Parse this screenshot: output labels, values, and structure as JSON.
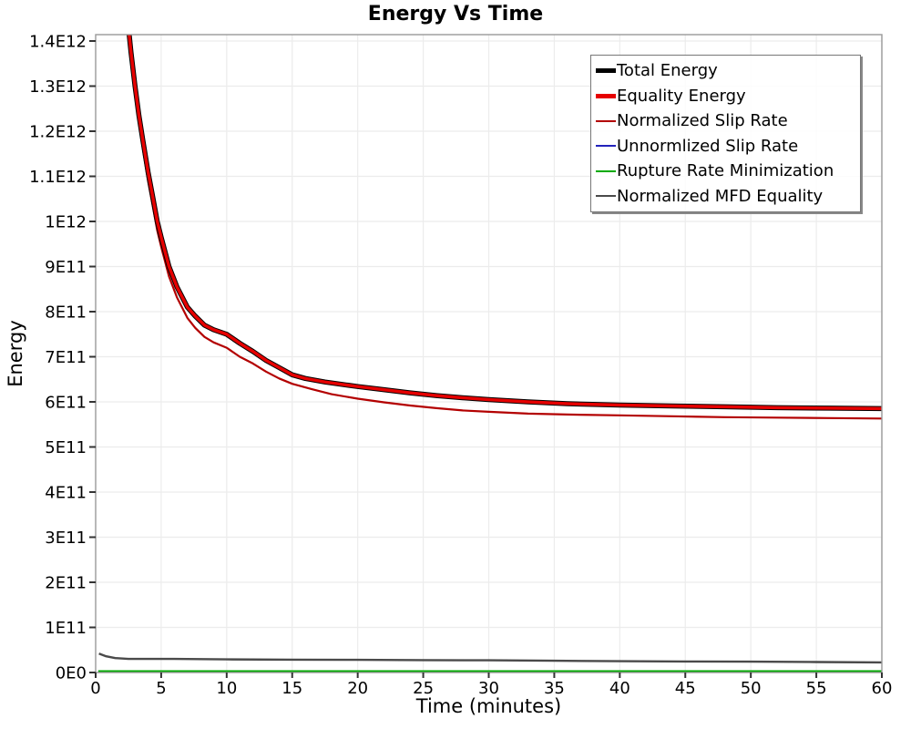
{
  "chart_data": {
    "type": "line",
    "title": "Energy Vs Time",
    "xlabel": "Time (minutes)",
    "ylabel": "Energy",
    "xlim": [
      0,
      60
    ],
    "ylim_e11": [
      0,
      14.14
    ],
    "grid": true,
    "legend_position": "top-right",
    "x_ticks": {
      "values": [
        0,
        5,
        10,
        15,
        20,
        25,
        30,
        35,
        40,
        45,
        50,
        55,
        60
      ],
      "labels": [
        "0",
        "5",
        "10",
        "15",
        "20",
        "25",
        "30",
        "35",
        "40",
        "45",
        "50",
        "55",
        "60"
      ]
    },
    "y_ticks": {
      "values_e11": [
        0,
        1,
        2,
        3,
        4,
        5,
        6,
        7,
        8,
        9,
        10,
        11,
        12,
        13,
        14
      ],
      "labels": [
        "0E0",
        "1E11",
        "2E11",
        "3E11",
        "4E11",
        "5E11",
        "6E11",
        "7E11",
        "8E11",
        "9E11",
        "1E12",
        "1.1E12",
        "1.2E12",
        "1.3E12",
        "1.4E12"
      ]
    },
    "units": "points are [time_minutes, energy_in_1e11]",
    "series": [
      {
        "name": "Total Energy",
        "color": "#000000",
        "width": 5.5,
        "legend_lw": 5,
        "zorder": 5,
        "points": [
          [
            2.3,
            15.2
          ],
          [
            2.5,
            14.3
          ],
          [
            2.7,
            13.75
          ],
          [
            3.0,
            13.0
          ],
          [
            3.3,
            12.35
          ],
          [
            3.6,
            11.8
          ],
          [
            4.0,
            11.1
          ],
          [
            4.35,
            10.55
          ],
          [
            4.7,
            10.0
          ],
          [
            5.0,
            9.65
          ],
          [
            5.6,
            9.0
          ],
          [
            6.2,
            8.55
          ],
          [
            7.0,
            8.1
          ],
          [
            7.6,
            7.9
          ],
          [
            8.3,
            7.7
          ],
          [
            9.0,
            7.6
          ],
          [
            10,
            7.5
          ],
          [
            11,
            7.3
          ],
          [
            12,
            7.12
          ],
          [
            13,
            6.92
          ],
          [
            14,
            6.76
          ],
          [
            15,
            6.6
          ],
          [
            16,
            6.52
          ],
          [
            17.5,
            6.44
          ],
          [
            20,
            6.34
          ],
          [
            22,
            6.27
          ],
          [
            24,
            6.2
          ],
          [
            26,
            6.14
          ],
          [
            28,
            6.09
          ],
          [
            30,
            6.05
          ],
          [
            33,
            6.0
          ],
          [
            36,
            5.96
          ],
          [
            40,
            5.93
          ],
          [
            44,
            5.91
          ],
          [
            48,
            5.89
          ],
          [
            52,
            5.87
          ],
          [
            56,
            5.86
          ],
          [
            60,
            5.85
          ]
        ]
      },
      {
        "name": "Equality Energy",
        "color": "#e60000",
        "width": 3.5,
        "legend_lw": 5,
        "zorder": 6,
        "points": [
          [
            2.3,
            15.2
          ],
          [
            2.5,
            14.3
          ],
          [
            2.7,
            13.75
          ],
          [
            3.0,
            13.0
          ],
          [
            3.3,
            12.35
          ],
          [
            3.6,
            11.8
          ],
          [
            4.0,
            11.1
          ],
          [
            4.35,
            10.55
          ],
          [
            4.7,
            10.0
          ],
          [
            5.0,
            9.65
          ],
          [
            5.6,
            9.0
          ],
          [
            6.2,
            8.55
          ],
          [
            7.0,
            8.1
          ],
          [
            7.6,
            7.9
          ],
          [
            8.3,
            7.7
          ],
          [
            9.0,
            7.6
          ],
          [
            10,
            7.5
          ],
          [
            11,
            7.3
          ],
          [
            12,
            7.12
          ],
          [
            13,
            6.92
          ],
          [
            14,
            6.76
          ],
          [
            15,
            6.6
          ],
          [
            16,
            6.52
          ],
          [
            17.5,
            6.44
          ],
          [
            20,
            6.34
          ],
          [
            22,
            6.27
          ],
          [
            24,
            6.2
          ],
          [
            26,
            6.14
          ],
          [
            28,
            6.09
          ],
          [
            30,
            6.05
          ],
          [
            33,
            6.0
          ],
          [
            36,
            5.96
          ],
          [
            40,
            5.93
          ],
          [
            44,
            5.91
          ],
          [
            48,
            5.89
          ],
          [
            52,
            5.87
          ],
          [
            56,
            5.86
          ],
          [
            60,
            5.85
          ]
        ]
      },
      {
        "name": "Normalized Slip Rate",
        "color": "#b30000",
        "width": 2.2,
        "legend_lw": 2,
        "zorder": 4,
        "points": [
          [
            2.3,
            15.1
          ],
          [
            2.5,
            14.2
          ],
          [
            2.7,
            13.65
          ],
          [
            3.0,
            12.88
          ],
          [
            3.3,
            12.2
          ],
          [
            3.6,
            11.62
          ],
          [
            4.0,
            10.9
          ],
          [
            4.35,
            10.35
          ],
          [
            4.7,
            9.8
          ],
          [
            5.0,
            9.44
          ],
          [
            5.6,
            8.78
          ],
          [
            6.2,
            8.32
          ],
          [
            7.0,
            7.86
          ],
          [
            7.6,
            7.64
          ],
          [
            8.3,
            7.44
          ],
          [
            9.0,
            7.32
          ],
          [
            10,
            7.2
          ],
          [
            11,
            7.0
          ],
          [
            12,
            6.85
          ],
          [
            13,
            6.67
          ],
          [
            14,
            6.52
          ],
          [
            15,
            6.4
          ],
          [
            16.5,
            6.28
          ],
          [
            18,
            6.17
          ],
          [
            20,
            6.07
          ],
          [
            22,
            5.99
          ],
          [
            24,
            5.92
          ],
          [
            26,
            5.86
          ],
          [
            28,
            5.81
          ],
          [
            30,
            5.78
          ],
          [
            33,
            5.74
          ],
          [
            36,
            5.72
          ],
          [
            40,
            5.7
          ],
          [
            44,
            5.68
          ],
          [
            48,
            5.66
          ],
          [
            52,
            5.65
          ],
          [
            56,
            5.64
          ],
          [
            60,
            5.63
          ]
        ]
      },
      {
        "name": "Unnormlized Slip Rate",
        "color": "#2222bb",
        "width": 2,
        "legend_lw": 2,
        "zorder": 1,
        "points": [
          [
            0.2,
            0.03
          ],
          [
            60,
            0.03
          ]
        ]
      },
      {
        "name": "Rupture Rate Minimization",
        "color": "#00aa00",
        "width": 2,
        "legend_lw": 2,
        "zorder": 2,
        "points": [
          [
            0.2,
            0.03
          ],
          [
            60,
            0.03
          ]
        ]
      },
      {
        "name": "Normalized MFD Equality",
        "color": "#4a4a4a",
        "width": 2.4,
        "legend_lw": 2,
        "zorder": 3,
        "points": [
          [
            0.25,
            0.42
          ],
          [
            0.8,
            0.36
          ],
          [
            1.5,
            0.32
          ],
          [
            2.5,
            0.3
          ],
          [
            4,
            0.3
          ],
          [
            6,
            0.3
          ],
          [
            10,
            0.29
          ],
          [
            15,
            0.285
          ],
          [
            20,
            0.28
          ],
          [
            25,
            0.275
          ],
          [
            30,
            0.27
          ],
          [
            35,
            0.26
          ],
          [
            40,
            0.25
          ],
          [
            45,
            0.245
          ],
          [
            50,
            0.24
          ],
          [
            55,
            0.232
          ],
          [
            60,
            0.225
          ]
        ]
      }
    ],
    "colors": {
      "grid": "#ececec",
      "plot_border": "#999999",
      "tick": "#333333",
      "text": "#000000",
      "background": "#ffffff"
    }
  }
}
